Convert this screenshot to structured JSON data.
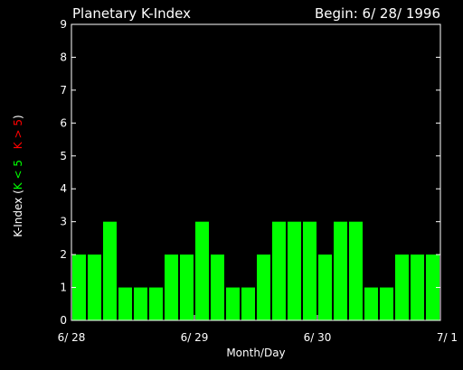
{
  "chart_data": {
    "type": "bar",
    "title": "Planetary K-Index",
    "begin_label": "Begin: 6/ 28/ 1996",
    "xlabel": "Month/Day",
    "ylabel": {
      "prefix": "K-Index  (",
      "low": "K < 5",
      "high": "K > 5",
      "suffix": ")"
    },
    "ylim": [
      0,
      9
    ],
    "y_ticks": [
      "0",
      "1",
      "2",
      "3",
      "4",
      "5",
      "6",
      "7",
      "8",
      "9"
    ],
    "x_ticks": [
      {
        "label": "6/ 28",
        "index": 0
      },
      {
        "label": "6/ 29",
        "index": 8
      },
      {
        "label": "6/ 30",
        "index": 16
      },
      {
        "label": "7/ 1",
        "index": 24
      }
    ],
    "values": [
      2,
      2,
      3,
      1,
      1,
      1,
      2,
      2,
      3,
      2,
      1,
      1,
      2,
      3,
      3,
      3,
      2,
      3,
      3,
      1,
      1,
      2,
      2,
      2
    ],
    "colors": {
      "bar": "#00ff00",
      "low_label": "#00ff00",
      "high_label": "#ff0000",
      "axis": "#ffffff",
      "background": "#000000"
    }
  }
}
